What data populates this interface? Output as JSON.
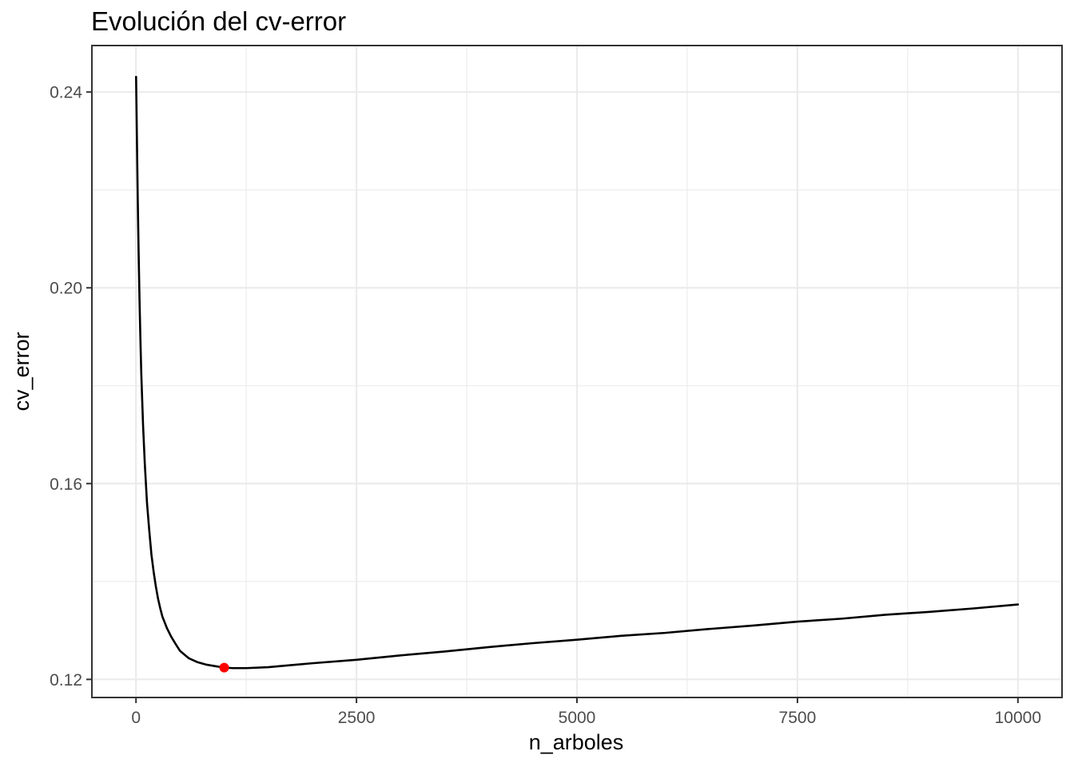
{
  "chart_data": {
    "type": "line",
    "title": "Evolución del cv-error",
    "xlabel": "n_arboles",
    "ylabel": "cv_error",
    "xlim": [
      -500,
      10500
    ],
    "ylim": [
      0.1163,
      0.2495
    ],
    "x_ticks": [
      0,
      2500,
      5000,
      7500,
      10000
    ],
    "x_tick_labels": [
      "0",
      "2500",
      "5000",
      "7500",
      "10000"
    ],
    "x_minor_ticks": [
      1250,
      3750,
      6250,
      8750
    ],
    "y_ticks": [
      0.12,
      0.16,
      0.2,
      0.24
    ],
    "y_tick_labels": [
      "0.12",
      "0.16",
      "0.20",
      "0.24"
    ],
    "y_minor_ticks": [
      0.14,
      0.18,
      0.22
    ],
    "grid": true,
    "line_color": "#000000",
    "series": [
      {
        "x": [
          1,
          10,
          20,
          30,
          40,
          50,
          60,
          80,
          100,
          125,
          150,
          175,
          200,
          225,
          250,
          275,
          300,
          350,
          400,
          450,
          500,
          600,
          700,
          800,
          900,
          1000,
          1100,
          1250,
          1500,
          1750,
          2000,
          2500,
          3000,
          3500,
          4000,
          4500,
          5000,
          5500,
          6000,
          6500,
          7000,
          7500,
          8000,
          8500,
          9000,
          9500,
          10000
        ],
        "y": [
          0.2431,
          0.231,
          0.218,
          0.207,
          0.1975,
          0.1895,
          0.1825,
          0.172,
          0.164,
          0.156,
          0.1505,
          0.1455,
          0.142,
          0.139,
          0.1365,
          0.1345,
          0.1328,
          0.1305,
          0.1287,
          0.1272,
          0.1258,
          0.1243,
          0.1235,
          0.123,
          0.1227,
          0.1224,
          0.1223,
          0.1223,
          0.1225,
          0.1229,
          0.1233,
          0.124,
          0.1249,
          0.1257,
          0.1266,
          0.1274,
          0.1281,
          0.1289,
          0.1295,
          0.1303,
          0.131,
          0.1318,
          0.1324,
          0.1332,
          0.1338,
          0.1345,
          0.1353
        ]
      }
    ],
    "highlight_point": {
      "x": 1000,
      "y": 0.1224,
      "color": "#ff0000"
    }
  }
}
